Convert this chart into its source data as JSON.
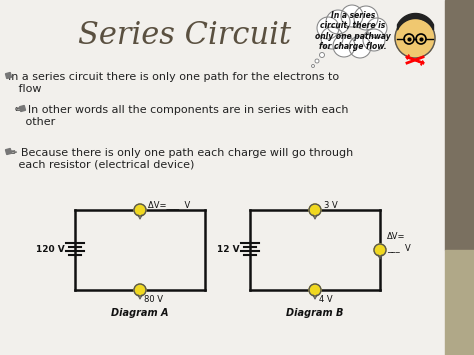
{
  "title": "Series Circuit",
  "title_fontsize": 22,
  "title_color": "#5a5040",
  "bg_color": "#f2f0ec",
  "bullet1_icon": " ✏ ",
  "bullet1_text": "In a series circuit there is only one path for the electrons to\n   flow",
  "bullet2_text": "  ✏ In other words all the components are in series with each\n     other",
  "bullet3_text": "✏ Because there is only one path each charge will go through\n   each resistor (electrical device)",
  "diagram_a_label": "Diagram A",
  "diagram_b_label": "Diagram B",
  "thought_text": "In a series\ncircuit, there is\nonly one pathway\nfor charge flow.",
  "right_panel_color1": "#7a7060",
  "right_panel_color2": "#b0a888",
  "text_color": "#222222",
  "circuit_color": "#111111",
  "bulb_color": "#f0d820",
  "battery_color": "#111111"
}
